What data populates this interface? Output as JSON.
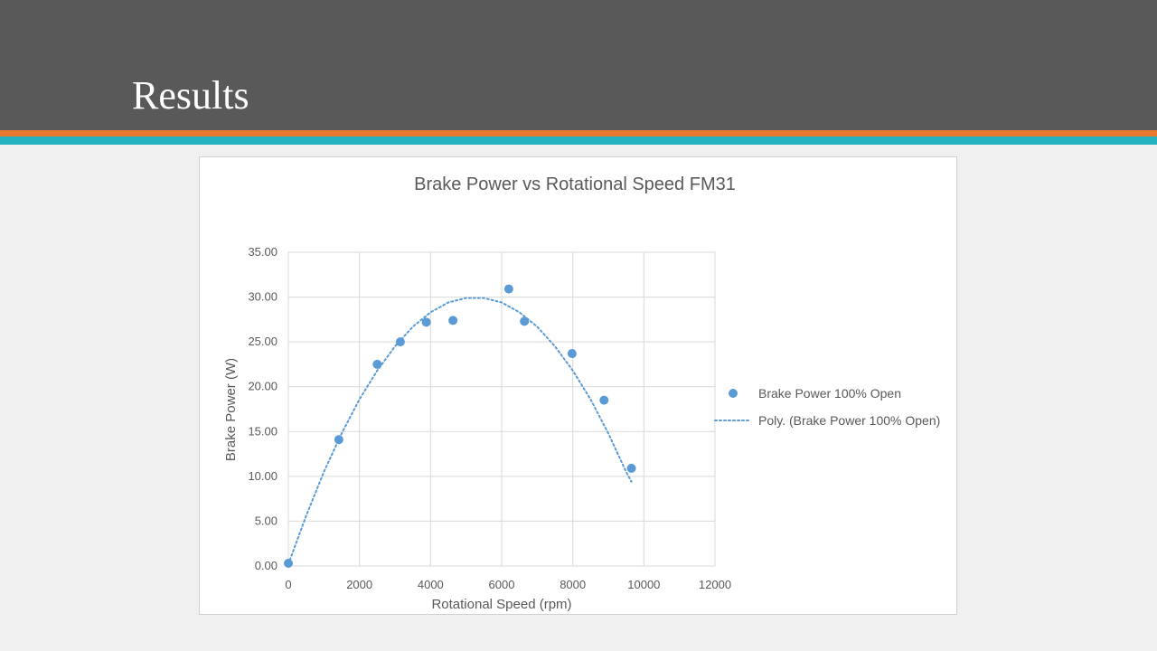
{
  "slide": {
    "title": "Results"
  },
  "colors": {
    "header": "#595959",
    "stripe_orange": "#e8792e",
    "stripe_teal": "#22b2c0",
    "series": "#5b9bd5",
    "grid": "#d9d9d9",
    "text": "#595959"
  },
  "chart_data": {
    "type": "scatter",
    "title": "Brake Power vs Rotational Speed FM31",
    "xlabel": "Rotational Speed (rpm)",
    "ylabel": "Brake Power (W)",
    "xlim": [
      0,
      12000
    ],
    "ylim": [
      0,
      35
    ],
    "x_ticks": [
      "0",
      "2000",
      "4000",
      "6000",
      "8000",
      "10000",
      "12000"
    ],
    "y_ticks": [
      "0.00",
      "5.00",
      "10.00",
      "15.00",
      "20.00",
      "25.00",
      "30.00",
      "35.00"
    ],
    "grid": true,
    "legend_position": "right",
    "series": [
      {
        "name": "Brake Power 100% Open",
        "style": "markers",
        "x": [
          0,
          1420,
          2500,
          3150,
          3880,
          4630,
          6200,
          6640,
          7980,
          8880,
          9650
        ],
        "y": [
          0.3,
          14.1,
          22.5,
          25.0,
          27.2,
          27.4,
          30.9,
          27.3,
          23.7,
          18.5,
          10.9
        ]
      },
      {
        "name": "Poly. (Brake Power 100% Open)",
        "style": "dotted-line",
        "x": [
          0,
          500,
          1000,
          1500,
          2000,
          2500,
          3000,
          3500,
          4000,
          4500,
          5000,
          5500,
          6000,
          6500,
          7000,
          7500,
          8000,
          8500,
          9000,
          9500,
          9650
        ],
        "y": [
          0.2,
          5.6,
          10.5,
          14.8,
          18.6,
          21.8,
          24.5,
          26.7,
          28.3,
          29.4,
          29.9,
          29.9,
          29.4,
          28.3,
          26.7,
          24.5,
          21.8,
          18.6,
          14.8,
          10.5,
          9.4
        ]
      }
    ]
  }
}
